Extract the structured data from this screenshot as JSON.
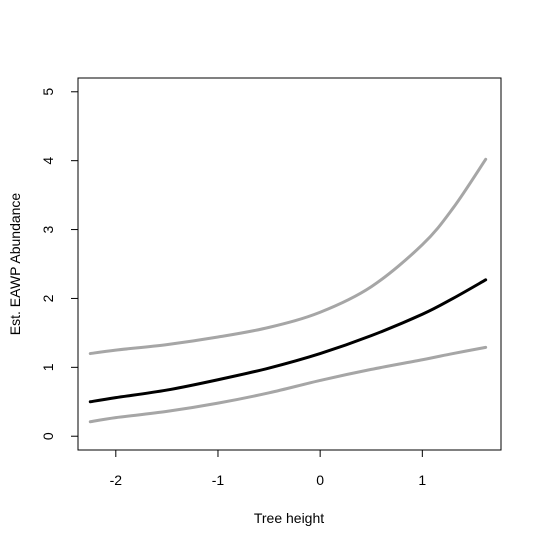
{
  "chart_data": {
    "type": "line",
    "title": "",
    "xlabel": "Tree height",
    "ylabel": "Est. EAWP Abundance",
    "xlim": [
      -2.37,
      1.77
    ],
    "ylim": [
      -0.2,
      5.2
    ],
    "xticks": [
      -2,
      -1,
      0,
      1
    ],
    "yticks": [
      0,
      1,
      2,
      3,
      4,
      5
    ],
    "grid": false,
    "legend": "none",
    "series": [
      {
        "role": "upper-bound",
        "color": "#a6a6a6",
        "x": [
          -2.25,
          -2.0,
          -1.5,
          -1.0,
          -0.5,
          0.0,
          0.5,
          1.0,
          1.3,
          1.62
        ],
        "y": [
          1.2,
          1.25,
          1.33,
          1.44,
          1.58,
          1.8,
          2.17,
          2.78,
          3.31,
          4.02
        ]
      },
      {
        "role": "estimate",
        "color": "#000000",
        "x": [
          -2.25,
          -2.0,
          -1.5,
          -1.0,
          -0.5,
          0.0,
          0.5,
          1.0,
          1.3,
          1.62
        ],
        "y": [
          0.5,
          0.56,
          0.67,
          0.82,
          0.99,
          1.2,
          1.46,
          1.77,
          2.0,
          2.27
        ]
      },
      {
        "role": "lower-bound",
        "color": "#a6a6a6",
        "x": [
          -2.25,
          -2.0,
          -1.5,
          -1.0,
          -0.5,
          0.0,
          0.5,
          1.0,
          1.3,
          1.62
        ],
        "y": [
          0.21,
          0.27,
          0.36,
          0.48,
          0.63,
          0.81,
          0.97,
          1.11,
          1.2,
          1.29
        ]
      }
    ]
  }
}
